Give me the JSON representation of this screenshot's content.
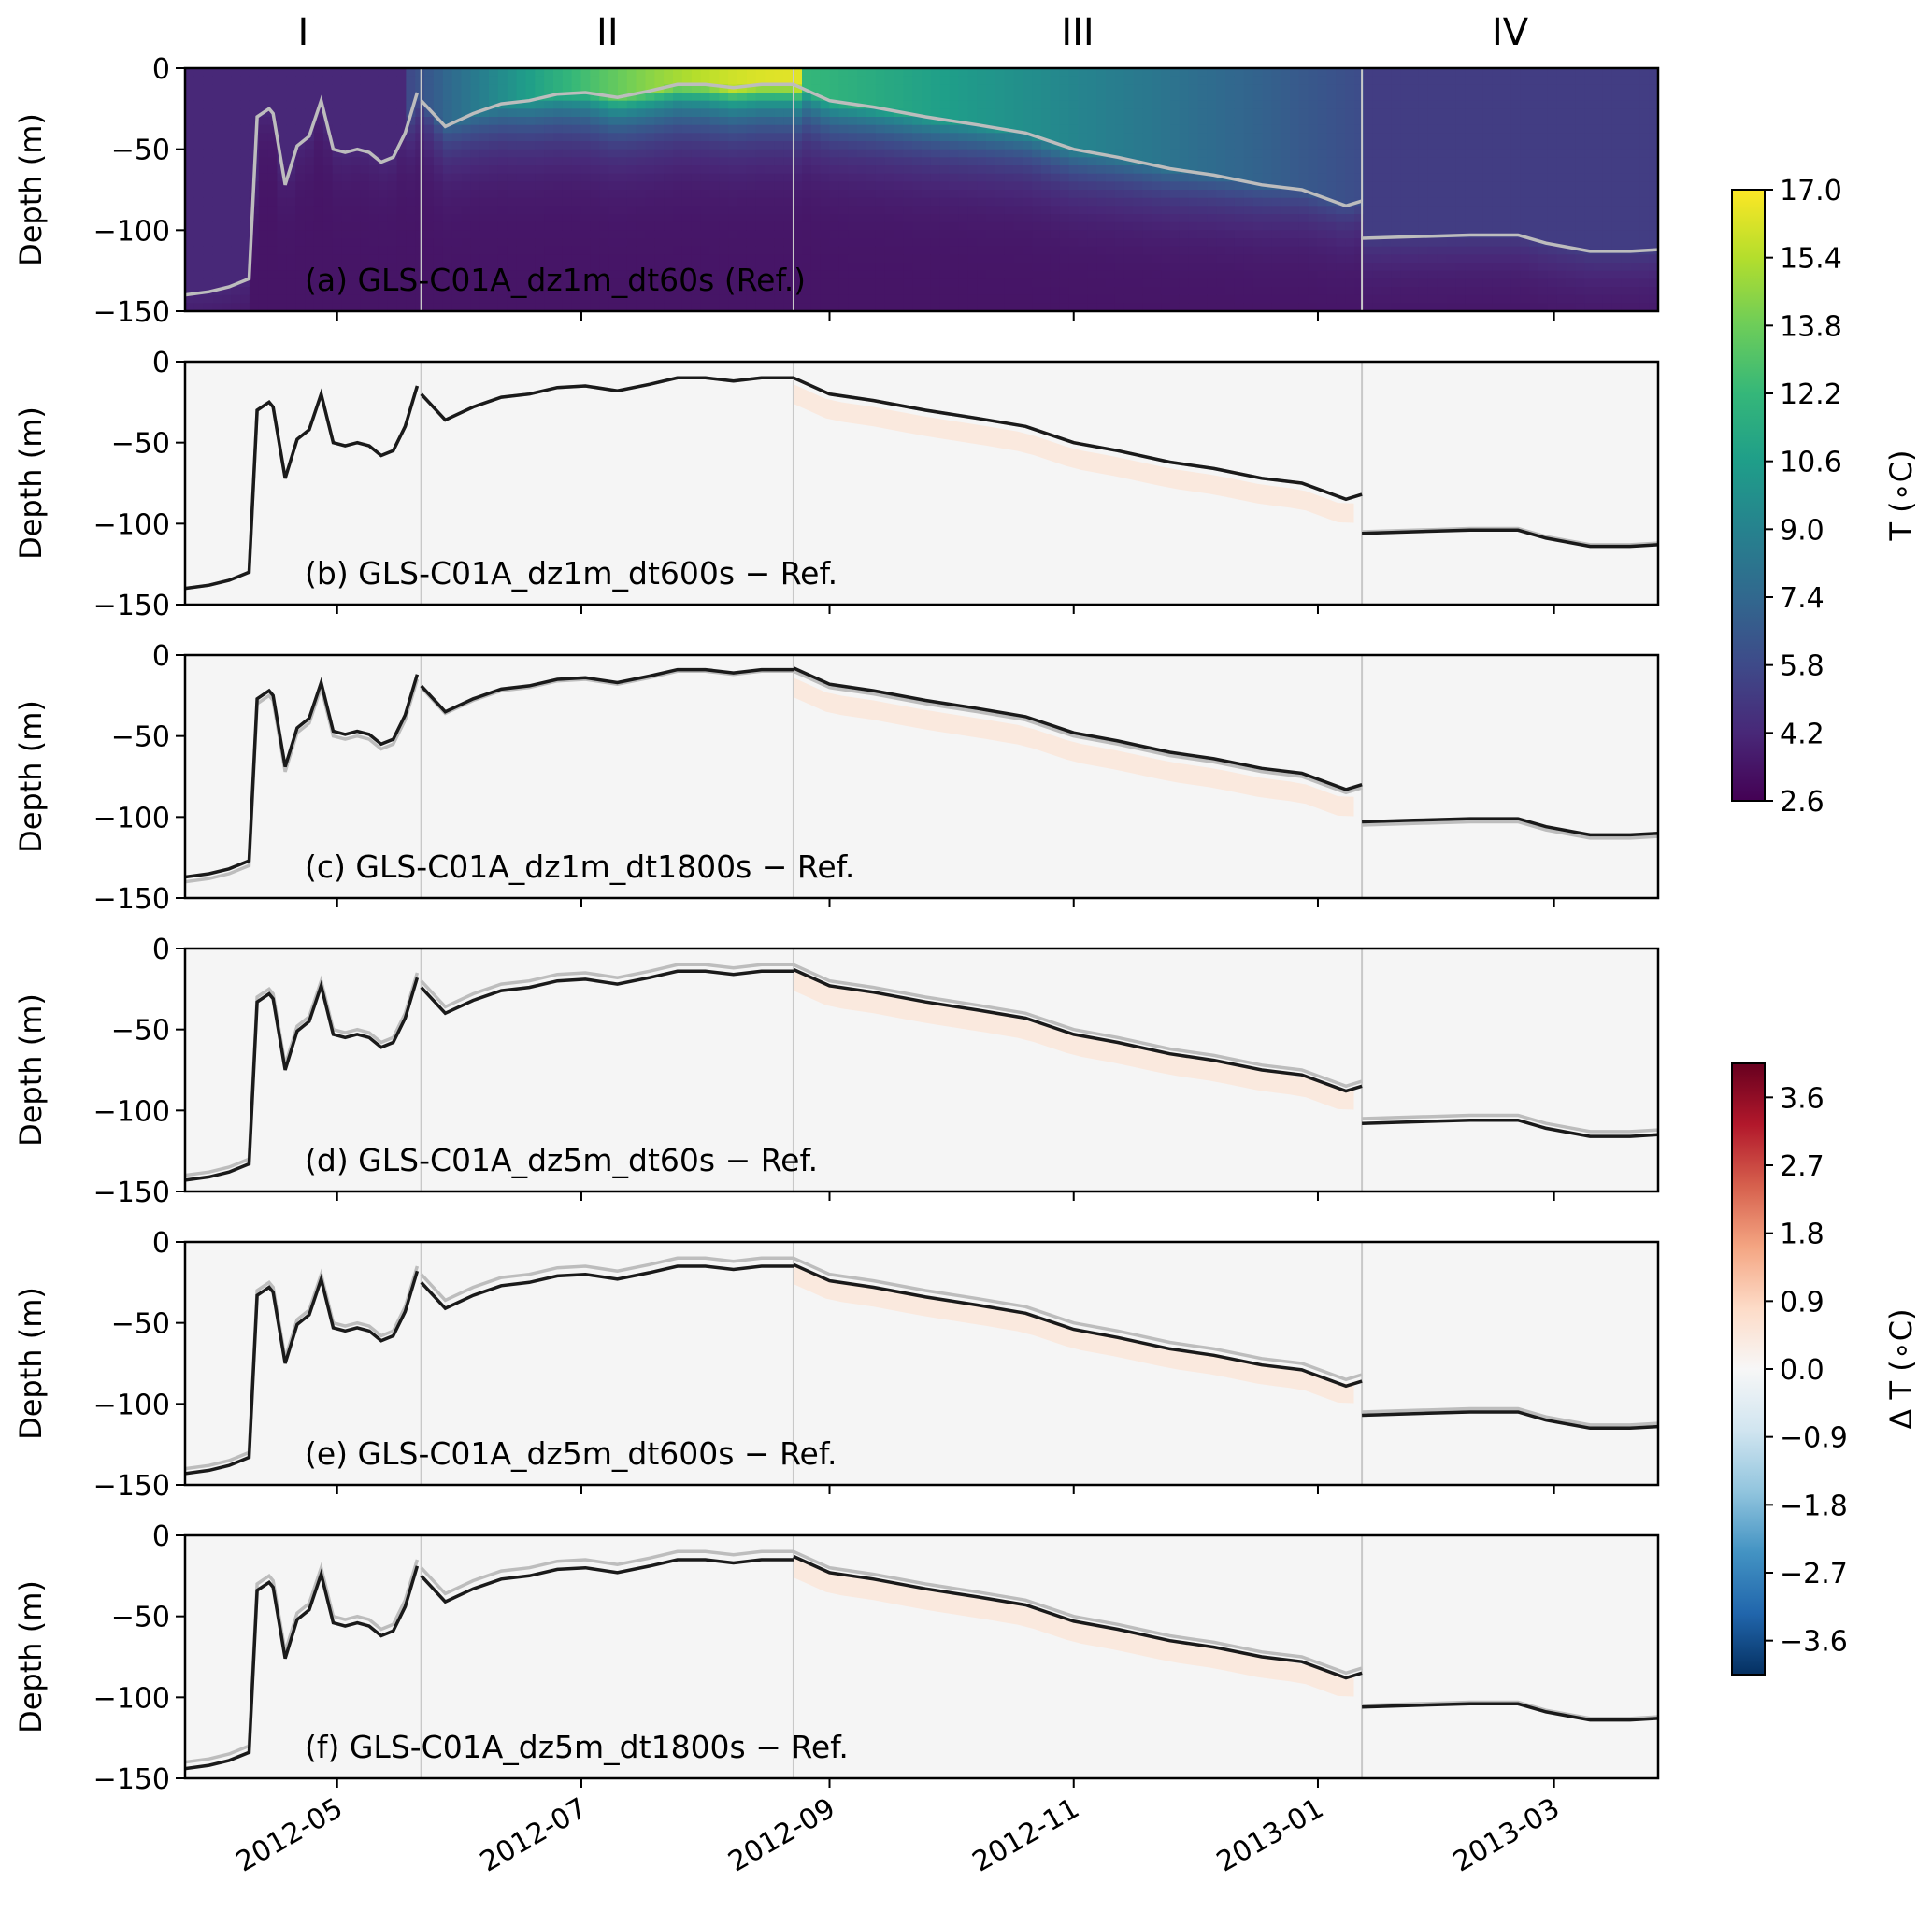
{
  "chart_data": {
    "type": "heatmap",
    "shared": {
      "periods": [
        "I",
        "II",
        "III",
        "IV"
      ],
      "period_boundaries": [
        "2012-05-22",
        "2012-08-23",
        "2013-01-12"
      ],
      "x_range": [
        "2012-03-24",
        "2013-03-27"
      ],
      "x_ticks": [
        "2012-05",
        "2012-07",
        "2012-09",
        "2012-11",
        "2013-01",
        "2013-03"
      ],
      "ylabel": "Depth (m)",
      "ylim": [
        -150,
        0
      ],
      "y_ticks": [
        0,
        -50,
        -100,
        -150
      ],
      "reference_line": {
        "x": [
          "2012-03-24",
          "2012-03-30",
          "2012-04-04",
          "2012-04-09",
          "2012-04-11",
          "2012-04-14",
          "2012-04-15",
          "2012-04-18",
          "2012-04-21",
          "2012-04-24",
          "2012-04-27",
          "2012-04-30",
          "2012-05-03",
          "2012-05-06",
          "2012-05-09",
          "2012-05-12",
          "2012-05-15",
          "2012-05-18",
          "2012-05-21",
          "2012-05-22",
          "2012-05-28",
          "2012-06-04",
          "2012-06-11",
          "2012-06-18",
          "2012-06-25",
          "2012-07-02",
          "2012-07-10",
          "2012-07-18",
          "2012-07-25",
          "2012-08-01",
          "2012-08-08",
          "2012-08-15",
          "2012-08-23",
          "2012-09-01",
          "2012-09-12",
          "2012-09-25",
          "2012-10-08",
          "2012-10-20",
          "2012-11-01",
          "2012-11-12",
          "2012-11-25",
          "2012-12-06",
          "2012-12-18",
          "2012-12-28",
          "2013-01-08",
          "2013-01-12",
          "2013-01-12",
          "2013-01-25",
          "2013-02-08",
          "2013-02-20",
          "2013-02-27",
          "2013-03-10",
          "2013-03-20",
          "2013-03-27"
        ],
        "y": [
          -140,
          -138,
          -135,
          -130,
          -30,
          -25,
          -28,
          -72,
          -48,
          -42,
          -20,
          -50,
          -52,
          -50,
          -52,
          -58,
          -55,
          -40,
          -15,
          -20,
          -36,
          -28,
          -22,
          -20,
          -16,
          -15,
          -18,
          -14,
          -10,
          -10,
          -12,
          -10,
          -10,
          -20,
          -24,
          -30,
          -35,
          -40,
          -50,
          -55,
          -62,
          -66,
          -72,
          -75,
          -85,
          -82,
          -105,
          -104,
          -103,
          -103,
          -108,
          -113,
          -113,
          -112
        ]
      },
      "grey_line_color": "#bdbdbd",
      "black_line_color": "#1a1a1a"
    },
    "panels": [
      {
        "label": "(a) GLS-C01A_dz1m_dt60s (Ref.)",
        "field": "temperature",
        "line_color": "#bdbdbd"
      },
      {
        "label": "(b) GLS-C01A_dz1m_dt600s − Ref.",
        "field": "difference",
        "line_offsets": [
          0,
          0,
          0,
          -1
        ]
      },
      {
        "label": "(c) GLS-C01A_dz1m_dt1800s − Ref.",
        "field": "difference",
        "line_offsets": [
          3,
          1,
          2,
          2
        ]
      },
      {
        "label": "(d) GLS-C01A_dz5m_dt60s − Ref.",
        "field": "difference",
        "line_offsets": [
          -3,
          -4,
          -3,
          -3
        ]
      },
      {
        "label": "(e) GLS-C01A_dz5m_dt600s − Ref.",
        "field": "difference",
        "line_offsets": [
          -3,
          -5,
          -4,
          -2
        ]
      },
      {
        "label": "(f) GLS-C01A_dz5m_dt1800s − Ref.",
        "field": "difference",
        "line_offsets": [
          -4,
          -5,
          -3,
          -1
        ]
      }
    ],
    "colorbars": [
      {
        "label": "T (∘C)",
        "range": [
          2.6,
          17.0
        ],
        "ticks": [
          "17.0",
          "15.4",
          "13.8",
          "12.2",
          "10.6",
          "9.0",
          "7.4",
          "5.8",
          "4.2",
          "2.6"
        ],
        "colormap": "viridis",
        "colors": [
          "#440154",
          "#482878",
          "#3e4a89",
          "#31688e",
          "#26828e",
          "#1f9e89",
          "#35b779",
          "#6dcd59",
          "#b4de2c",
          "#fde725"
        ]
      },
      {
        "label": "Δ T (∘C)",
        "range": [
          -4.05,
          4.05
        ],
        "ticks": [
          "3.6",
          "2.7",
          "1.8",
          "0.9",
          "0.0",
          "−0.9",
          "−1.8",
          "−2.7",
          "−3.6"
        ],
        "tick_values": [
          3.6,
          2.7,
          1.8,
          0.9,
          0.0,
          -0.9,
          -1.8,
          -2.7,
          -3.6
        ],
        "colormap": "RdBu_r",
        "colors": [
          "#053061",
          "#2166ac",
          "#4393c3",
          "#92c5de",
          "#d1e5f0",
          "#f7f7f7",
          "#fddbc7",
          "#f4a582",
          "#d6604d",
          "#b2182b",
          "#67001f"
        ]
      }
    ]
  }
}
